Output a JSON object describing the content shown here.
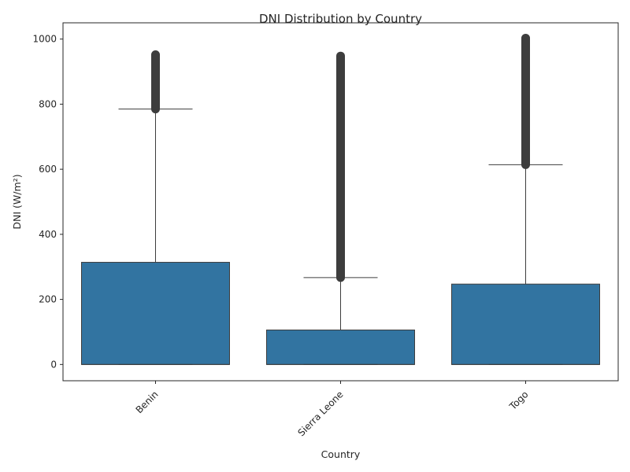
{
  "chart_data": {
    "type": "box",
    "title": "DNI Distribution by Country",
    "xlabel": "Country",
    "ylabel": "DNI (W/m²)",
    "ylim": [
      -50,
      1050
    ],
    "yticks": [
      0,
      200,
      400,
      600,
      800,
      1000
    ],
    "xtick_rotation_deg": 45,
    "box_color": "#3274a1",
    "line_color": "#3d3d3d",
    "grid": false,
    "categories": [
      "Benin",
      "Sierra Leone",
      "Togo"
    ],
    "boxes": [
      {
        "category": "Benin",
        "min": 0,
        "q1": 0,
        "median": 0,
        "q3": 314,
        "whisker_low": 0,
        "whisker_high": 785,
        "outliers_range": [
          785,
          952
        ]
      },
      {
        "category": "Sierra Leone",
        "min": 0,
        "q1": 0,
        "median": 0,
        "q3": 106,
        "whisker_low": 0,
        "whisker_high": 267,
        "outliers_range": [
          267,
          948
        ]
      },
      {
        "category": "Togo",
        "min": 0,
        "q1": 0,
        "median": 0,
        "q3": 247,
        "whisker_low": 0,
        "whisker_high": 614,
        "outliers_range": [
          614,
          1003
        ]
      }
    ]
  }
}
